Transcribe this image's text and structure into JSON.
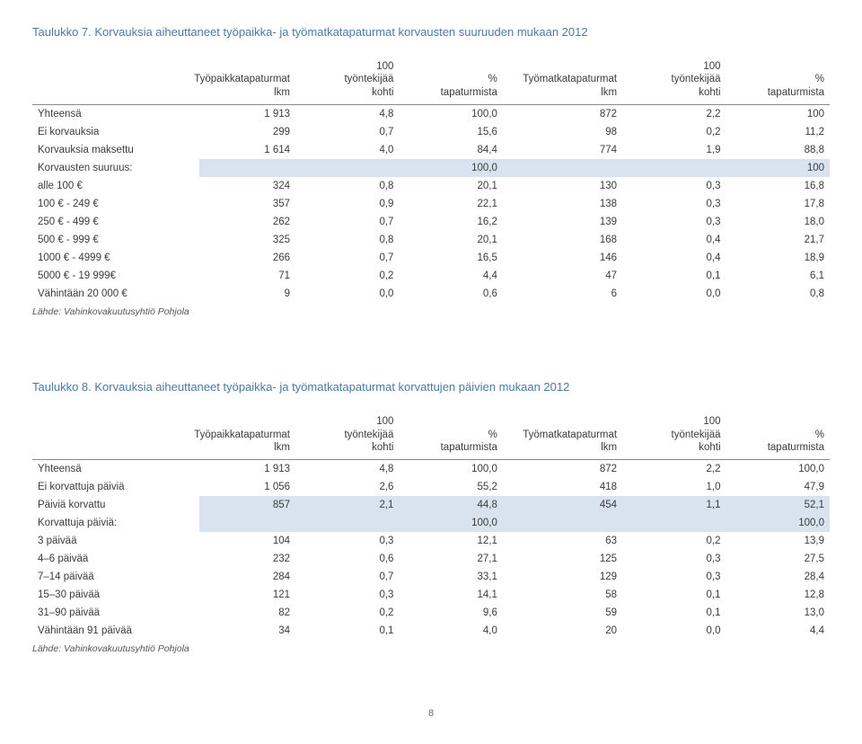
{
  "table7": {
    "title_prefix": "Taulukko 7.",
    "title_rest": " Korvauksia aiheuttaneet työpaikka- ja työmatkatapaturmat korvausten suuruuden mukaan 2012",
    "headers": {
      "col_a_l1": "Työpaikkatapaturmat",
      "col_a_l2": "lkm",
      "col_b_l1": "100",
      "col_b_l2": "työntekijää",
      "col_b_l3": "kohti",
      "col_c_l1": "%",
      "col_c_l2": "tapaturmista",
      "col_d_l1": "Työmatkatapaturmat",
      "col_d_l2": "lkm",
      "col_e_l1": "100",
      "col_e_l2": "työntekijää",
      "col_e_l3": "kohti",
      "col_f_l1": "%",
      "col_f_l2": "tapaturmista"
    },
    "rows": [
      {
        "hl": false,
        "label": "Yhteensä",
        "a": "1 913",
        "b": "4,8",
        "c": "100,0",
        "d": "872",
        "e": "2,2",
        "f": "100"
      },
      {
        "hl": false,
        "label": "Ei korvauksia",
        "a": "299",
        "b": "0,7",
        "c": "15,6",
        "d": "98",
        "e": "0,2",
        "f": "11,2"
      },
      {
        "hl": false,
        "label": "Korvauksia maksettu",
        "a": "1 614",
        "b": "4,0",
        "c": "84,4",
        "d": "774",
        "e": "1,9",
        "f": "88,8"
      },
      {
        "hl": true,
        "label": "Korvausten suuruus:",
        "a": "",
        "b": "",
        "c": "100,0",
        "d": "",
        "e": "",
        "f": "100"
      },
      {
        "hl": false,
        "label": "alle 100 €",
        "a": "324",
        "b": "0,8",
        "c": "20,1",
        "d": "130",
        "e": "0,3",
        "f": "16,8"
      },
      {
        "hl": false,
        "label": "100 € - 249 €",
        "a": "357",
        "b": "0,9",
        "c": "22,1",
        "d": "138",
        "e": "0,3",
        "f": "17,8"
      },
      {
        "hl": false,
        "label": "250 € - 499 €",
        "a": "262",
        "b": "0,7",
        "c": "16,2",
        "d": "139",
        "e": "0,3",
        "f": "18,0"
      },
      {
        "hl": false,
        "label": "500 € - 999 €",
        "a": "325",
        "b": "0,8",
        "c": "20,1",
        "d": "168",
        "e": "0,4",
        "f": "21,7"
      },
      {
        "hl": false,
        "label": "1000 € - 4999 €",
        "a": "266",
        "b": "0,7",
        "c": "16,5",
        "d": "146",
        "e": "0,4",
        "f": "18,9"
      },
      {
        "hl": false,
        "label": "5000 € - 19 999€",
        "a": "71",
        "b": "0,2",
        "c": "4,4",
        "d": "47",
        "e": "0,1",
        "f": "6,1"
      },
      {
        "hl": false,
        "label": "Vähintään 20 000 €",
        "a": "9",
        "b": "0,0",
        "c": "0,6",
        "d": "6",
        "e": "0,0",
        "f": "0,8"
      }
    ],
    "source": "Lähde: Vahinkovakuutusyhtiö Pohjola"
  },
  "table8": {
    "title_prefix": "Taulukko 8.",
    "title_rest": " Korvauksia aiheuttaneet työpaikka- ja työmatkatapaturmat korvattujen päivien mukaan 2012",
    "headers": {
      "col_a_l1": "Työpaikkatapaturmat",
      "col_a_l2": "lkm",
      "col_b_l1": "100",
      "col_b_l2": "työntekijää",
      "col_b_l3": "kohti",
      "col_c_l1": "%",
      "col_c_l2": "tapaturmista",
      "col_d_l1": "Työmatkatapaturmat",
      "col_d_l2": "lkm",
      "col_e_l1": "100",
      "col_e_l2": "työntekijää",
      "col_e_l3": "kohti",
      "col_f_l1": "%",
      "col_f_l2": "tapaturmista"
    },
    "rows": [
      {
        "hl": false,
        "label": "Yhteensä",
        "a": "1 913",
        "b": "4,8",
        "c": "100,0",
        "d": "872",
        "e": "2,2",
        "f": "100,0"
      },
      {
        "hl": false,
        "label": "Ei korvattuja päiviä",
        "a": "1 056",
        "b": "2,6",
        "c": "55,2",
        "d": "418",
        "e": "1,0",
        "f": "47,9"
      },
      {
        "hl": true,
        "label": "Päiviä korvattu",
        "a": "857",
        "b": "2,1",
        "c": "44,8",
        "d": "454",
        "e": "1,1",
        "f": "52,1"
      },
      {
        "hl": true,
        "label": "Korvattuja päiviä:",
        "a": "",
        "b": "",
        "c": "100,0",
        "d": "",
        "e": "",
        "f": "100,0"
      },
      {
        "hl": false,
        "label": "3 päivää",
        "a": "104",
        "b": "0,3",
        "c": "12,1",
        "d": "63",
        "e": "0,2",
        "f": "13,9"
      },
      {
        "hl": false,
        "label": "4–6 päivää",
        "a": "232",
        "b": "0,6",
        "c": "27,1",
        "d": "125",
        "e": "0,3",
        "f": "27,5"
      },
      {
        "hl": false,
        "label": "7–14 päivää",
        "a": "284",
        "b": "0,7",
        "c": "33,1",
        "d": "129",
        "e": "0,3",
        "f": "28,4"
      },
      {
        "hl": false,
        "label": "15–30 päivää",
        "a": "121",
        "b": "0,3",
        "c": "14,1",
        "d": "58",
        "e": "0,1",
        "f": "12,8"
      },
      {
        "hl": false,
        "label": "31–90 päivää",
        "a": "82",
        "b": "0,2",
        "c": "9,6",
        "d": "59",
        "e": "0,1",
        "f": "13,0"
      },
      {
        "hl": false,
        "label": "Vähintään 91 päivää",
        "a": "34",
        "b": "0,1",
        "c": "4,0",
        "d": "20",
        "e": "0,0",
        "f": "4,4"
      }
    ],
    "source": "Lähde: Vahinkovakuutusyhtiö Pohjola"
  },
  "page_number": "8"
}
